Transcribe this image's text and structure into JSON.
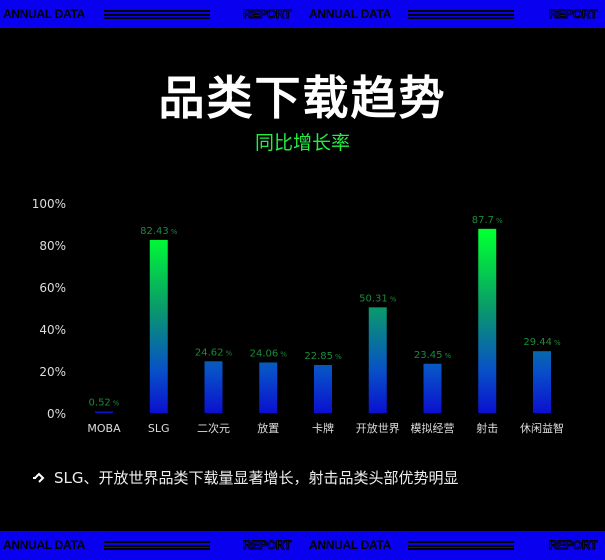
{
  "banner": {
    "left_text": "ANNUAL DATA",
    "right_text": "REPORT"
  },
  "title": "品类下载趋势",
  "subtitle": "同比增长率",
  "chart_data": {
    "type": "bar",
    "categories": [
      "MOBA",
      "SLG",
      "二次元",
      "放置",
      "卡牌",
      "开放世界",
      "模拟经营",
      "射击",
      "休闲益智"
    ],
    "values": [
      0.52,
      82.43,
      24.62,
      24.06,
      22.85,
      50.31,
      23.45,
      87.7,
      29.44
    ],
    "data_labels": [
      "0.52",
      "82.43",
      "24.62",
      "24.06",
      "22.85",
      "50.31",
      "23.45",
      "87.7",
      "29.44"
    ],
    "label_unit": "%",
    "yticks": [
      "0%",
      "20%",
      "40%",
      "60%",
      "80%",
      "100%"
    ],
    "ylim": [
      0,
      100
    ],
    "grid": false,
    "colors": {
      "gradient_top": "#00ff33",
      "gradient_bottom": "#0a10d0",
      "label": "#1a8a3a"
    }
  },
  "note": {
    "icon": "diamond-arrow-icon",
    "text": "SLG、开放世界品类下载量显著增长，射击品类头部优势明显"
  }
}
